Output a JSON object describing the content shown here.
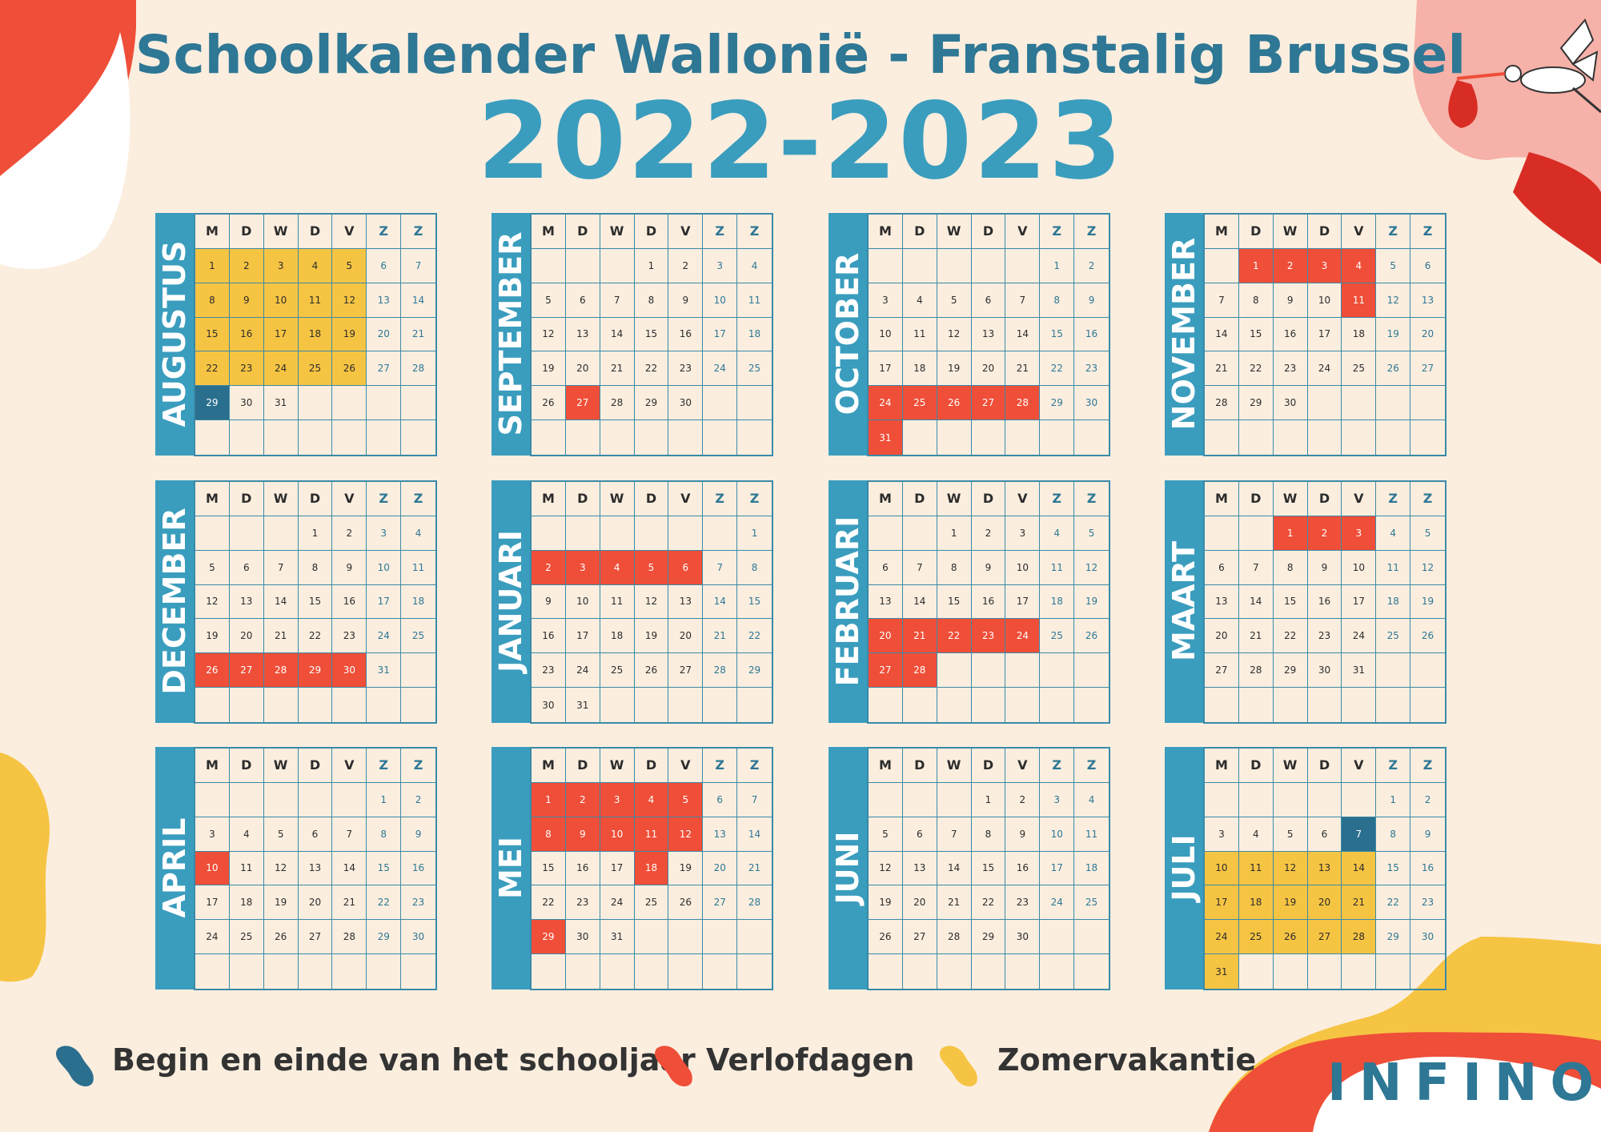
{
  "title": "Schoolkalender Wallonië - Franstalig Brussel",
  "year": "2022-2023",
  "weekday_headers": [
    "M",
    "D",
    "W",
    "D",
    "V",
    "Z",
    "Z"
  ],
  "months": [
    {
      "name": "AUGUSTUS",
      "start_offset": 0,
      "days": 31,
      "yellow": [
        1,
        2,
        3,
        4,
        5,
        8,
        9,
        10,
        11,
        12,
        15,
        16,
        17,
        18,
        19,
        22,
        23,
        24,
        25,
        26
      ],
      "red": [],
      "blue": [
        29
      ]
    },
    {
      "name": "SEPTEMBER",
      "start_offset": 3,
      "days": 30,
      "yellow": [],
      "red": [
        27
      ],
      "blue": []
    },
    {
      "name": "OCTOBER",
      "start_offset": 5,
      "days": 31,
      "yellow": [],
      "red": [
        24,
        25,
        26,
        27,
        28,
        31
      ],
      "blue": []
    },
    {
      "name": "NOVEMBER",
      "start_offset": 1,
      "days": 30,
      "yellow": [],
      "red": [
        1,
        2,
        3,
        4,
        11
      ],
      "blue": []
    },
    {
      "name": "DECEMBER",
      "start_offset": 3,
      "days": 31,
      "yellow": [],
      "red": [
        26,
        27,
        28,
        29,
        30
      ],
      "blue": []
    },
    {
      "name": "JANUARI",
      "start_offset": 6,
      "days": 31,
      "yellow": [],
      "red": [
        2,
        3,
        4,
        5,
        6
      ],
      "blue": []
    },
    {
      "name": "FEBRUARI",
      "start_offset": 2,
      "days": 28,
      "yellow": [],
      "red": [
        20,
        21,
        22,
        23,
        24,
        27,
        28
      ],
      "blue": []
    },
    {
      "name": "MAART",
      "start_offset": 2,
      "days": 31,
      "yellow": [],
      "red": [
        1,
        2,
        3
      ],
      "blue": []
    },
    {
      "name": "APRIL",
      "start_offset": 5,
      "days": 30,
      "yellow": [],
      "red": [
        10
      ],
      "blue": []
    },
    {
      "name": "MEI",
      "start_offset": 0,
      "days": 31,
      "yellow": [],
      "red": [
        1,
        2,
        3,
        4,
        5,
        8,
        9,
        10,
        11,
        12,
        18,
        29
      ],
      "blue": []
    },
    {
      "name": "JUNI",
      "start_offset": 3,
      "days": 30,
      "yellow": [],
      "red": [],
      "blue": []
    },
    {
      "name": "JULI",
      "start_offset": 5,
      "days": 31,
      "yellow": [
        10,
        11,
        12,
        13,
        14,
        17,
        18,
        19,
        20,
        21,
        24,
        25,
        26,
        27,
        28,
        31
      ],
      "red": [],
      "blue": [
        7
      ]
    }
  ],
  "legend": {
    "blue_label": "Begin en einde van het schooljaar",
    "red_label": "Verlofdagen",
    "yellow_label": "Zomervakantie"
  },
  "colors": {
    "background": "#fbeedf",
    "accent_blue": "#3a9dbe",
    "dark_blue": "#2b6f8e",
    "red": "#ef4e38",
    "yellow": "#f6c443"
  },
  "brand": "INFINO"
}
